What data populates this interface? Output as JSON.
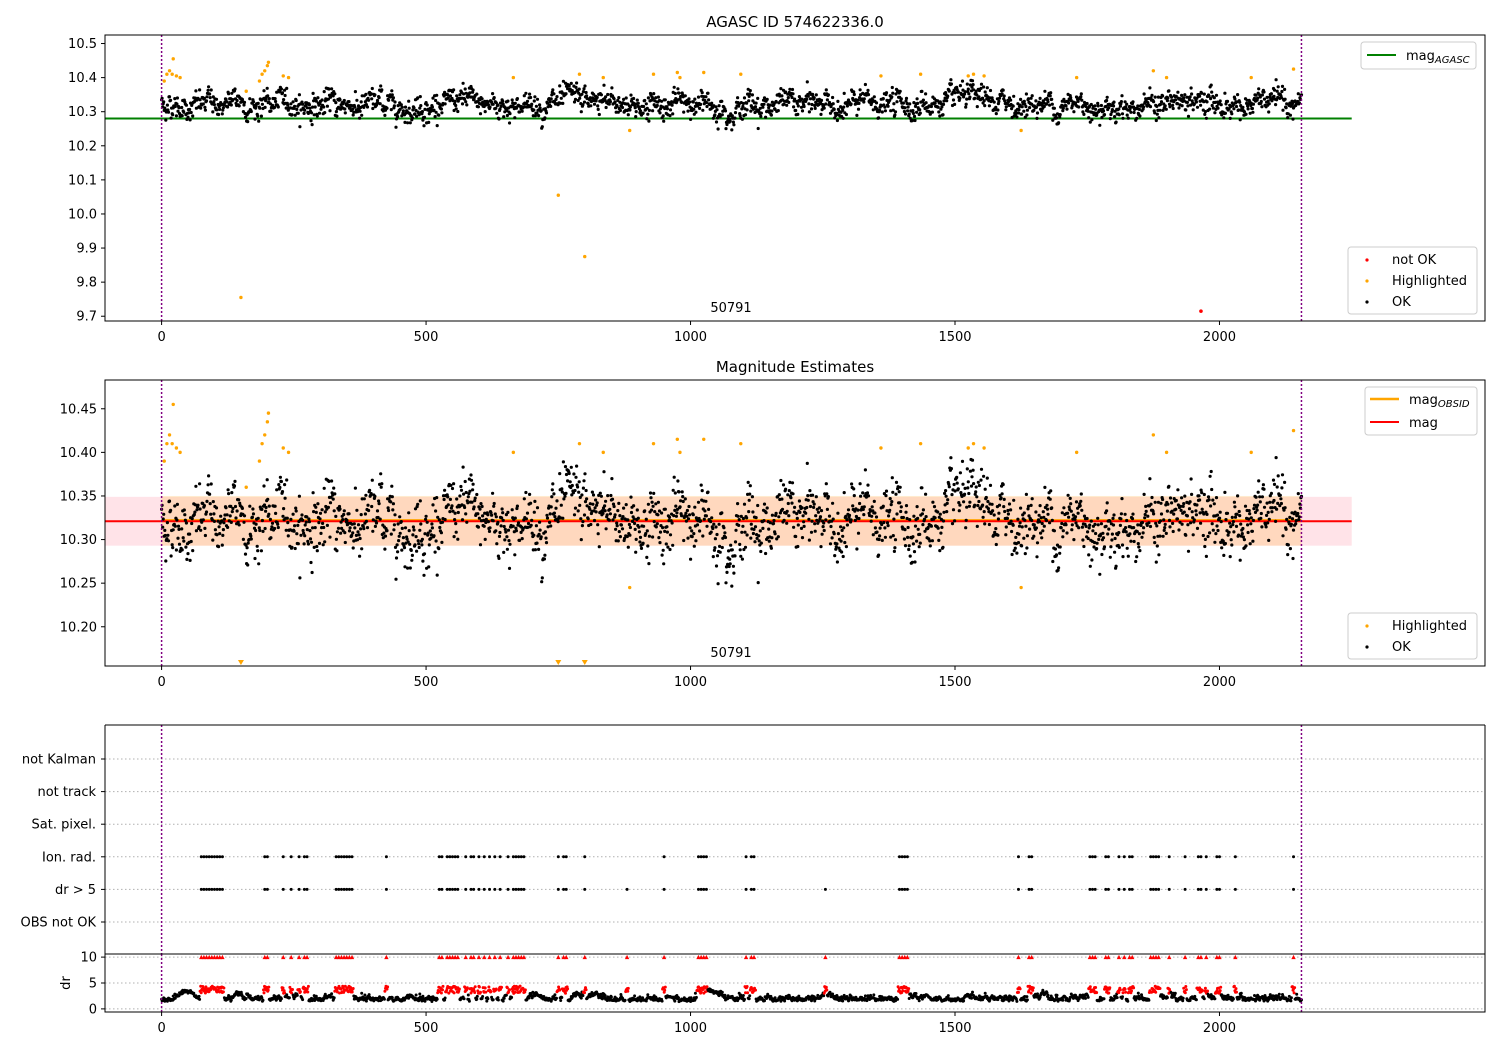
{
  "chart_data": [
    {
      "type": "scatter",
      "title": "AGASC ID 574622336.0",
      "xlabel": "",
      "ylabel": "",
      "xlim": [
        -107,
        2502
      ],
      "ylim": [
        9.686,
        10.525
      ],
      "x_ticks": [
        0,
        500,
        1000,
        1500,
        2000
      ],
      "x_tick_labels": [
        "0",
        "500",
        "1000",
        "1500",
        "2000"
      ],
      "y_ticks": [
        9.7,
        9.8,
        9.9,
        10.0,
        10.1,
        10.2,
        10.3,
        10.4,
        10.5
      ],
      "y_tick_labels": [
        "9.7",
        "9.8",
        "9.9",
        "10.0",
        "10.1",
        "10.2",
        "10.3",
        "10.4",
        "10.5"
      ],
      "vlines": [
        0,
        2155
      ],
      "obsid_label": {
        "text": "50791",
        "x": 1077
      },
      "hline": {
        "name": "mag_AGASC",
        "value": 10.28,
        "x_range": [
          -107,
          2250
        ],
        "color": "#008000"
      },
      "lines_legend": [
        {
          "label": "mag",
          "sub": "AGASC",
          "color": "#008000"
        }
      ],
      "points_legend": [
        {
          "label": "not OK",
          "color": "#ff0000"
        },
        {
          "label": "Highlighted",
          "color": "#ffa500"
        },
        {
          "label": "OK",
          "color": "#000000"
        }
      ],
      "n_points": 2160,
      "x_range": [
        0,
        2155
      ],
      "ok_band": {
        "center": 10.322,
        "spread": 0.028
      },
      "highlighted": [
        [
          5,
          10.39
        ],
        [
          10,
          10.41
        ],
        [
          15,
          10.42
        ],
        [
          20,
          10.41
        ],
        [
          22,
          10.455
        ],
        [
          28,
          10.405
        ],
        [
          35,
          10.4
        ],
        [
          150,
          9.755
        ],
        [
          160,
          10.36
        ],
        [
          185,
          10.39
        ],
        [
          190,
          10.41
        ],
        [
          195,
          10.42
        ],
        [
          200,
          10.435
        ],
        [
          202,
          10.445
        ],
        [
          230,
          10.405
        ],
        [
          240,
          10.4
        ],
        [
          665,
          10.4
        ],
        [
          750,
          10.055
        ],
        [
          790,
          10.41
        ],
        [
          800,
          9.875
        ],
        [
          835,
          10.4
        ],
        [
          885,
          10.245
        ],
        [
          930,
          10.41
        ],
        [
          975,
          10.415
        ],
        [
          980,
          10.4
        ],
        [
          1025,
          10.415
        ],
        [
          1095,
          10.41
        ],
        [
          1360,
          10.405
        ],
        [
          1435,
          10.41
        ],
        [
          1525,
          10.405
        ],
        [
          1535,
          10.41
        ],
        [
          1555,
          10.405
        ],
        [
          1625,
          10.245
        ],
        [
          1730,
          10.4
        ],
        [
          1875,
          10.42
        ],
        [
          1900,
          10.4
        ],
        [
          2060,
          10.4
        ],
        [
          2140,
          10.425
        ]
      ],
      "not_ok": [
        [
          1965,
          9.715
        ]
      ]
    },
    {
      "type": "scatter",
      "title": "Magnitude Estimates",
      "xlabel": "",
      "ylabel": "",
      "xlim": [
        -107,
        2502
      ],
      "ylim": [
        10.155,
        10.483
      ],
      "x_ticks": [
        0,
        500,
        1000,
        1500,
        2000
      ],
      "x_tick_labels": [
        "0",
        "500",
        "1000",
        "1500",
        "2000"
      ],
      "y_ticks": [
        10.2,
        10.25,
        10.3,
        10.35,
        10.4,
        10.45
      ],
      "y_tick_labels": [
        "10.20",
        "10.25",
        "10.30",
        "10.35",
        "10.40",
        "10.45"
      ],
      "vlines": [
        0,
        2155
      ],
      "obsid_label": {
        "text": "50791",
        "x": 1077
      },
      "bands": [
        {
          "y0": 10.293,
          "y1": 10.349,
          "x0": -107,
          "x1": 2250,
          "color": "#ffc0cb",
          "opacity": 0.45
        },
        {
          "y0": 10.293,
          "y1": 10.35,
          "x0": 0,
          "x1": 2155,
          "color": "#ffa500",
          "opacity": 0.18
        }
      ],
      "hline": {
        "name": "mag",
        "value": 10.321,
        "x_range": [
          -107,
          2250
        ],
        "color": "#ff0000"
      },
      "obsid_mag": {
        "value": 10.322,
        "x_range": [
          0,
          2155
        ],
        "color": "#ffa500"
      },
      "lines_legend": [
        {
          "label": "mag",
          "sub": "OBSID",
          "color": "#ffa500"
        },
        {
          "label": "mag",
          "sub": "",
          "color": "#ff0000"
        }
      ],
      "points_legend": [
        {
          "label": "Highlighted",
          "color": "#ffa500"
        },
        {
          "label": "OK",
          "color": "#000000"
        }
      ],
      "n_points": 2160,
      "x_range": [
        0,
        2155
      ],
      "ok_band": {
        "center": 10.322,
        "spread": 0.028
      },
      "highlighted": [
        [
          5,
          10.39
        ],
        [
          10,
          10.41
        ],
        [
          15,
          10.42
        ],
        [
          20,
          10.41
        ],
        [
          22,
          10.455
        ],
        [
          28,
          10.405
        ],
        [
          35,
          10.4
        ],
        [
          160,
          10.36
        ],
        [
          185,
          10.39
        ],
        [
          190,
          10.41
        ],
        [
          195,
          10.42
        ],
        [
          200,
          10.435
        ],
        [
          202,
          10.445
        ],
        [
          230,
          10.405
        ],
        [
          240,
          10.4
        ],
        [
          665,
          10.4
        ],
        [
          790,
          10.41
        ],
        [
          835,
          10.4
        ],
        [
          885,
          10.245
        ],
        [
          930,
          10.41
        ],
        [
          975,
          10.415
        ],
        [
          980,
          10.4
        ],
        [
          1025,
          10.415
        ],
        [
          1095,
          10.41
        ],
        [
          1360,
          10.405
        ],
        [
          1435,
          10.41
        ],
        [
          1525,
          10.405
        ],
        [
          1535,
          10.41
        ],
        [
          1555,
          10.405
        ],
        [
          1625,
          10.245
        ],
        [
          1730,
          10.4
        ],
        [
          1875,
          10.42
        ],
        [
          1900,
          10.4
        ],
        [
          2060,
          10.4
        ],
        [
          2140,
          10.425
        ]
      ],
      "below_markers": [
        150,
        750,
        800
      ]
    },
    {
      "type": "scatter",
      "title": "",
      "xlabel": "",
      "ylabel": "",
      "xlim": [
        -107,
        2502
      ],
      "categories": [
        "not Kalman",
        "not track",
        "Sat. pixel.",
        "Ion. rad.",
        "dr > 5",
        "OBS not OK"
      ],
      "vlines": [
        0,
        2155
      ],
      "ion_rad_x": [
        75,
        80,
        85,
        90,
        95,
        100,
        105,
        110,
        115,
        195,
        200,
        230,
        245,
        260,
        270,
        275,
        330,
        335,
        340,
        345,
        350,
        355,
        360,
        425,
        525,
        530,
        540,
        545,
        550,
        555,
        560,
        575,
        585,
        590,
        600,
        610,
        620,
        630,
        640,
        655,
        665,
        670,
        675,
        680,
        685,
        750,
        760,
        765,
        800,
        950,
        1015,
        1020,
        1025,
        1030,
        1105,
        1115,
        1120,
        1395,
        1400,
        1405,
        1410,
        1620,
        1640,
        1645,
        1755,
        1760,
        1765,
        1785,
        1790,
        1810,
        1820,
        1830,
        1835,
        1870,
        1875,
        1880,
        1885,
        1905,
        1935,
        1960,
        1965,
        1975,
        1995,
        2000,
        2030,
        2140
      ],
      "dr5_x": [
        75,
        80,
        85,
        90,
        95,
        100,
        105,
        110,
        115,
        195,
        200,
        230,
        245,
        260,
        270,
        275,
        330,
        335,
        340,
        345,
        350,
        355,
        360,
        425,
        525,
        530,
        540,
        545,
        550,
        555,
        560,
        575,
        585,
        590,
        600,
        610,
        620,
        630,
        640,
        655,
        665,
        670,
        675,
        680,
        685,
        750,
        760,
        765,
        800,
        880,
        950,
        1015,
        1020,
        1025,
        1030,
        1105,
        1115,
        1120,
        1255,
        1395,
        1400,
        1405,
        1410,
        1620,
        1640,
        1645,
        1755,
        1760,
        1765,
        1785,
        1790,
        1810,
        1820,
        1830,
        1835,
        1870,
        1875,
        1880,
        1885,
        1905,
        1935,
        1960,
        1965,
        1975,
        1995,
        2000,
        2030,
        2140
      ]
    },
    {
      "type": "scatter",
      "title": "",
      "xlabel": "",
      "ylabel": "dr",
      "xlim": [
        -107,
        2502
      ],
      "ylim": [
        -0.6,
        10.6
      ],
      "x_ticks": [
        0,
        500,
        1000,
        1500,
        2000
      ],
      "x_tick_labels": [
        "0",
        "500",
        "1000",
        "1500",
        "2000"
      ],
      "y_ticks": [
        0,
        5,
        10
      ],
      "y_tick_labels": [
        "0",
        "5",
        "10"
      ],
      "vlines": [
        0,
        2155
      ],
      "clipped_value": 10,
      "n_points": 2160,
      "x_range": [
        0,
        2155
      ]
    }
  ]
}
